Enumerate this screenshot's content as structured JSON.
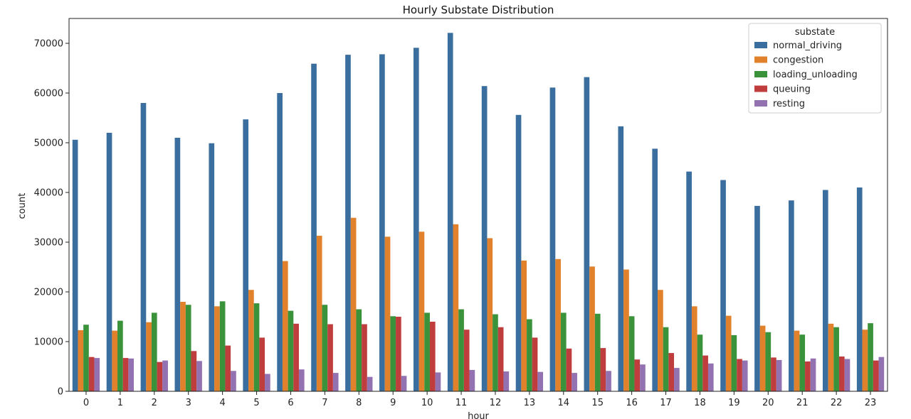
{
  "chart_data": {
    "type": "bar",
    "title": "Hourly Substate Distribution",
    "xlabel": "hour",
    "ylabel": "count",
    "ylim": [
      0,
      75000
    ],
    "yticks": [
      0,
      10000,
      20000,
      30000,
      40000,
      50000,
      60000,
      70000
    ],
    "grid": false,
    "legend": {
      "title": "substate",
      "placement": "top-right"
    },
    "categories": [
      "0",
      "1",
      "2",
      "3",
      "4",
      "5",
      "6",
      "7",
      "8",
      "9",
      "10",
      "11",
      "12",
      "13",
      "14",
      "15",
      "16",
      "17",
      "18",
      "19",
      "20",
      "21",
      "22",
      "23"
    ],
    "series": [
      {
        "name": "normal_driving",
        "color": "#3a6e9f",
        "values": [
          50600,
          52000,
          58000,
          51000,
          49900,
          54700,
          60000,
          65900,
          67700,
          67800,
          69100,
          72100,
          61400,
          55600,
          61100,
          63200,
          53300,
          48800,
          44200,
          42500,
          37300,
          38400,
          40500,
          41000
        ]
      },
      {
        "name": "congestion",
        "color": "#e1812c",
        "values": [
          12300,
          12200,
          13900,
          18000,
          17100,
          20400,
          26200,
          31300,
          34900,
          31100,
          32100,
          33600,
          30800,
          26300,
          26600,
          25100,
          24500,
          20400,
          17100,
          15200,
          13200,
          12200,
          13600,
          12400
        ]
      },
      {
        "name": "loading_unloading",
        "color": "#3a923a",
        "values": [
          13400,
          14200,
          15800,
          17400,
          18100,
          17700,
          16200,
          17400,
          16500,
          15100,
          15800,
          16500,
          15500,
          14500,
          15800,
          15600,
          15100,
          12900,
          11400,
          11300,
          11900,
          11400,
          12900,
          13700
        ]
      },
      {
        "name": "queuing",
        "color": "#c03d3e",
        "values": [
          6900,
          6700,
          5900,
          8100,
          9200,
          10800,
          13600,
          13500,
          13500,
          15000,
          14000,
          12400,
          12900,
          10800,
          8600,
          8700,
          6400,
          7700,
          7200,
          6500,
          6800,
          6000,
          7000,
          6200
        ]
      },
      {
        "name": "resting",
        "color": "#9372b2",
        "values": [
          6700,
          6600,
          6200,
          6100,
          4100,
          3500,
          4400,
          3700,
          2900,
          3100,
          3800,
          4300,
          4000,
          3900,
          3700,
          4100,
          5400,
          4700,
          5600,
          6200,
          6300,
          6600,
          6500,
          6900
        ]
      }
    ]
  }
}
